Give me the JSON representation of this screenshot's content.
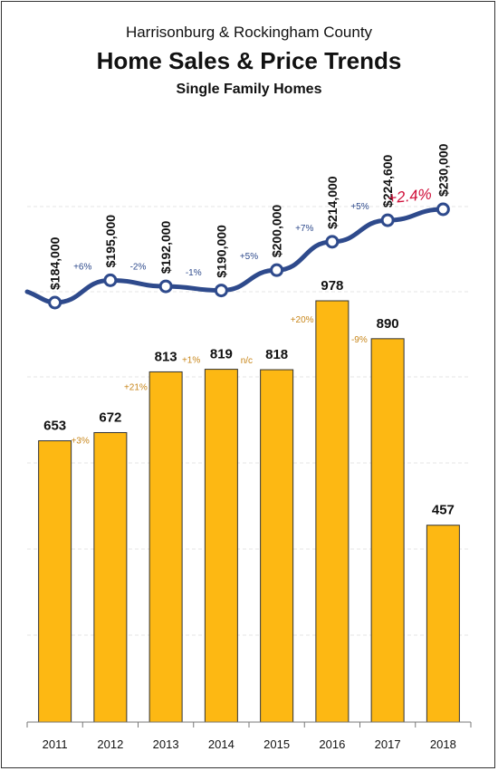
{
  "title_line1": "Harrisonburg & Rockingham County",
  "title_line2": "Home Sales & Price Trends",
  "title_line3": "Single Family Homes",
  "colors": {
    "bar": "#FDB813",
    "line": "#2E4A8C",
    "bar_change": "#C8861A",
    "price_change": "#2E4A8C",
    "annotation": "#D0103A"
  },
  "chart_data": {
    "type": "bar",
    "categories": [
      "2011",
      "2012",
      "2013",
      "2014",
      "2015",
      "2016",
      "2017",
      "2018"
    ],
    "series": [
      {
        "type": "bar",
        "values": [
          653,
          672,
          813,
          819,
          818,
          978,
          890,
          457
        ],
        "labels": [
          "653",
          "672",
          "813",
          "819",
          "818",
          "978",
          "890",
          "457"
        ],
        "changes": [
          "+3%",
          "+21%",
          "+1%",
          "n/c",
          "+20%",
          "-9%"
        ]
      },
      {
        "type": "line",
        "values": [
          184000,
          195000,
          192000,
          190000,
          200000,
          214000,
          224600,
          230000
        ],
        "labels": [
          "$184,000",
          "$195,000",
          "$192,000",
          "$190,000",
          "$200,000",
          "$214,000",
          "$224,600",
          "$230,000"
        ],
        "changes": [
          "+6%",
          "-2%",
          "-1%",
          "+5%",
          "+7%",
          "+5%"
        ]
      }
    ],
    "annotation": "+2.4%",
    "grid": true
  }
}
